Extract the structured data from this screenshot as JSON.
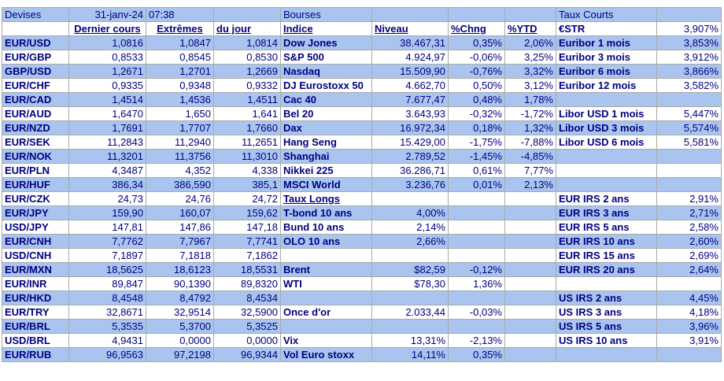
{
  "header": {
    "devises": "Devises",
    "date": "31-janv-24",
    "time": "07:38",
    "bourses": "Bourses",
    "taux_courts": "Taux Courts"
  },
  "subheader": {
    "dernier_cours": "Dernier cours",
    "extremes": "Extrêmes",
    "du_jour": "du jour",
    "indice": "Indice",
    "niveau": "Niveau",
    "pct_chng": "%Chng",
    "pct_ytd": "%YTD",
    "estr_label": "€STR",
    "estr_value": "3,907%"
  },
  "rows": [
    {
      "pair": "EUR/USD",
      "last": "1,0816",
      "high": "1,0847",
      "low": "1,0814",
      "idx": "Dow Jones",
      "niv": "38.467,31",
      "chg": "0,35%",
      "ytd": "2,06%",
      "rate": "Euribor 1 mois",
      "rval": "3,853%"
    },
    {
      "pair": "EUR/GBP",
      "last": "0,8533",
      "high": "0,8545",
      "low": "0,8530",
      "idx": "S&P 500",
      "niv": "4.924,97",
      "chg": "-0,06%",
      "ytd": "3,25%",
      "rate": "Euribor 3 mois",
      "rval": "3,912%"
    },
    {
      "pair": "GBP/USD",
      "last": "1,2671",
      "high": "1,2701",
      "low": "1,2669",
      "idx": "Nasdaq",
      "niv": "15.509,90",
      "chg": "-0,76%",
      "ytd": "3,32%",
      "rate": "Euribor 6 mois",
      "rval": "3,866%"
    },
    {
      "pair": "EUR/CHF",
      "last": "0,9335",
      "high": "0,9348",
      "low": "0,9332",
      "idx": "DJ Eurostoxx 50",
      "niv": "4.662,70",
      "chg": "0,50%",
      "ytd": "3,12%",
      "rate": "Euribor 12 mois",
      "rval": "3,582%"
    },
    {
      "pair": "EUR/CAD",
      "last": "1,4514",
      "high": "1,4536",
      "low": "1,4511",
      "idx": "Cac 40",
      "niv": "7.677,47",
      "chg": "0,48%",
      "ytd": "1,78%",
      "rate": "",
      "rval": ""
    },
    {
      "pair": "EUR/AUD",
      "last": "1,6470",
      "high": "1,650",
      "low": "1,641",
      "idx": "Bel 20",
      "niv": "3.643,93",
      "chg": "-0,32%",
      "ytd": "-1,72%",
      "rate": "Libor USD 1 mois",
      "rval": "5,447%"
    },
    {
      "pair": "EUR/NZD",
      "last": "1,7691",
      "high": "1,7707",
      "low": "1,7660",
      "idx": "Dax",
      "niv": "16.972,34",
      "chg": "0,18%",
      "ytd": "1,32%",
      "rate": "Libor USD 3 mois",
      "rval": "5,574%"
    },
    {
      "pair": "EUR/SEK",
      "last": "11,2843",
      "high": "11,2940",
      "low": "11,2651",
      "idx": "Hang Seng",
      "niv": "15.429,00",
      "chg": "-1,75%",
      "ytd": "-7,88%",
      "rate": "Libor USD 6 mois",
      "rval": "5,581%"
    },
    {
      "pair": "EUR/NOK",
      "last": "11,3201",
      "high": "11,3756",
      "low": "11,3010",
      "idx": "Shanghai",
      "niv": "2.789,52",
      "chg": "-1,45%",
      "ytd": "-4,85%",
      "rate": "",
      "rval": ""
    },
    {
      "pair": "EUR/PLN",
      "last": "4,3487",
      "high": "4,352",
      "low": "4,338",
      "idx": "Nikkei 225",
      "niv": "36.286,71",
      "chg": "0,61%",
      "ytd": "7,77%",
      "rate": "",
      "rval": ""
    },
    {
      "pair": "EUR/HUF",
      "last": "386,34",
      "high": "386,590",
      "low": "385,1",
      "idx": "MSCI World",
      "niv": "3.236,76",
      "chg": "0,01%",
      "ytd": "2,13%",
      "rate": "",
      "rval": ""
    },
    {
      "pair": "EUR/CZK",
      "last": "24,73",
      "high": "24,76",
      "low": "24,72",
      "idx": "Taux Longs",
      "niv": "",
      "chg": "",
      "ytd": "",
      "rate": "EUR IRS 2 ans",
      "rval": "2,91%"
    },
    {
      "pair": "EUR/JPY",
      "last": "159,90",
      "high": "160,07",
      "low": "159,62",
      "idx": "T-bond 10 ans",
      "niv": "4,00%",
      "chg": "",
      "ytd": "",
      "rate": "EUR IRS 3 ans",
      "rval": "2,71%"
    },
    {
      "pair": "USD/JPY",
      "last": "147,81",
      "high": "147,86",
      "low": "147,18",
      "idx": "Bund 10 ans",
      "niv": "2,14%",
      "chg": "",
      "ytd": "",
      "rate": "EUR IRS 5 ans",
      "rval": "2,58%"
    },
    {
      "pair": "EUR/CNH",
      "last": "7,7762",
      "high": "7,7967",
      "low": "7,7741",
      "idx": "OLO 10 ans",
      "niv": "2,66%",
      "chg": "",
      "ytd": "",
      "rate": "EUR IRS 10 ans",
      "rval": "2,60%"
    },
    {
      "pair": "USD/CNH",
      "last": "7,1897",
      "high": "7,1818",
      "low": "7,1862",
      "idx": "",
      "niv": "",
      "chg": "",
      "ytd": "",
      "rate": "EUR IRS 15 ans",
      "rval": "2,69%"
    },
    {
      "pair": "EUR/MXN",
      "last": "18,5625",
      "high": "18,6123",
      "low": "18,5531",
      "idx": "Brent",
      "niv": "$82,59",
      "chg": "-0,12%",
      "ytd": "",
      "rate": "EUR IRS 20 ans",
      "rval": "2,64%"
    },
    {
      "pair": "EUR/INR",
      "last": "89,847",
      "high": "90,1390",
      "low": "89,8320",
      "idx": "WTI",
      "niv": "$78,30",
      "chg": "1,36%",
      "ytd": "",
      "rate": "",
      "rval": ""
    },
    {
      "pair": "EUR/HKD",
      "last": "8,4548",
      "high": "8,4792",
      "low": "8,4534",
      "idx": "",
      "niv": "",
      "chg": "",
      "ytd": "",
      "rate": "US IRS 2 ans",
      "rval": "4,45%"
    },
    {
      "pair": "EUR/TRY",
      "last": "32,8671",
      "high": "32,9514",
      "low": "32,5900",
      "idx": "Once d'or",
      "niv": "2.033,44",
      "chg": "-0,03%",
      "ytd": "",
      "rate": "US IRS 3 ans",
      "rval": "4,18%"
    },
    {
      "pair": "EUR/BRL",
      "last": "5,3535",
      "high": "5,3700",
      "low": "5,3525",
      "idx": "",
      "niv": "",
      "chg": "",
      "ytd": "",
      "rate": "US IRS 5 ans",
      "rval": "3,96%"
    },
    {
      "pair": "USD/BRL",
      "last": "4,9431",
      "high": "0,0000",
      "low": "0,0000",
      "idx": "Vix",
      "niv": "13,31%",
      "chg": "-2,13%",
      "ytd": "",
      "rate": "US IRS 10 ans",
      "rval": "3,91%"
    },
    {
      "pair": "EUR/RUB",
      "last": "96,9563",
      "high": "97,2198",
      "low": "96,9344",
      "idx": "Vol Euro stoxx",
      "niv": "14,11%",
      "chg": "0,35%",
      "ytd": "",
      "rate": "",
      "rval": ""
    }
  ]
}
